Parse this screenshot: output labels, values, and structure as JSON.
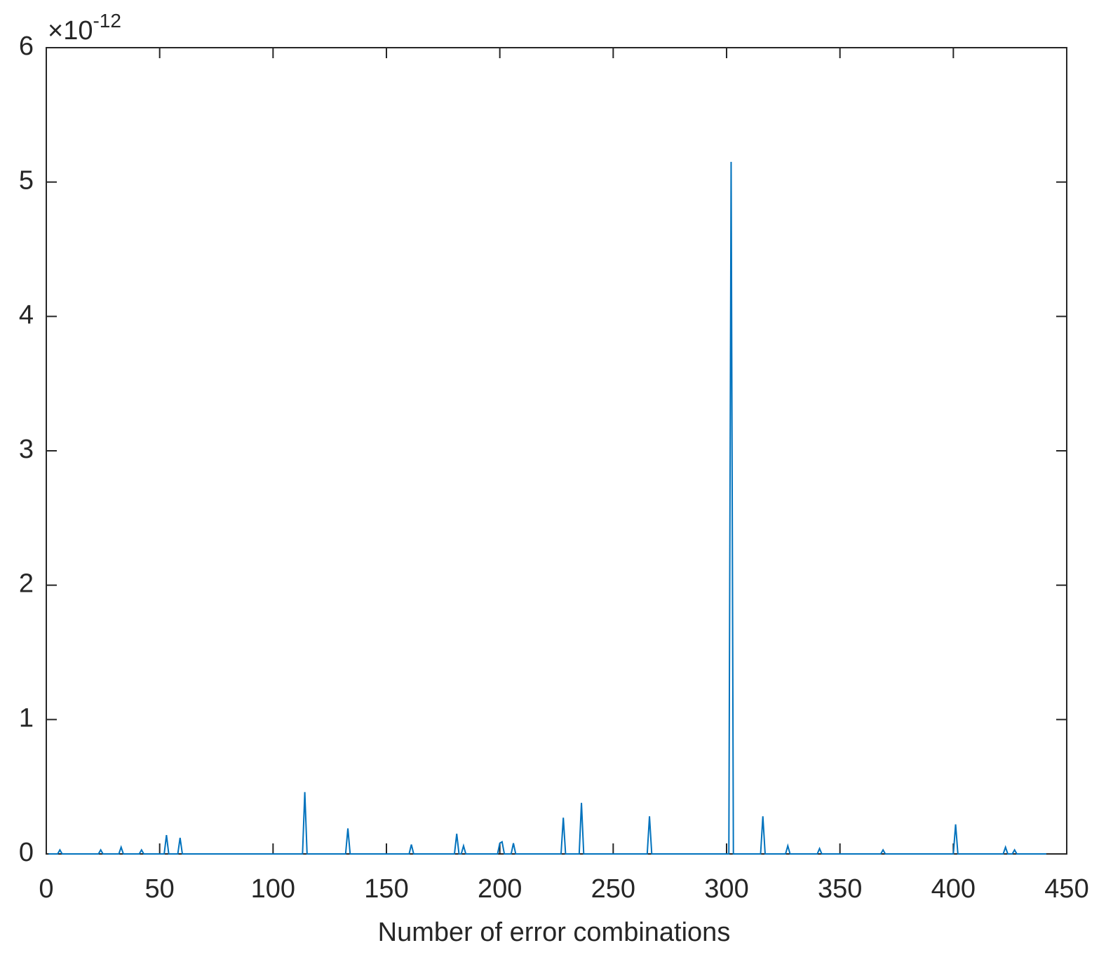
{
  "chart_data": {
    "type": "line",
    "xlabel": "Number of error combinations",
    "y_multiplier": {
      "base": "×10",
      "exponent": "-12"
    },
    "x": [
      1,
      5,
      6,
      7,
      23,
      24,
      25,
      32,
      33,
      34,
      41,
      42,
      43,
      52,
      53,
      54,
      58,
      59,
      60,
      113,
      114,
      115,
      132,
      133,
      134,
      160,
      161,
      162,
      180,
      181,
      182,
      183,
      184,
      185,
      199,
      200,
      201,
      202,
      205,
      206,
      207,
      227,
      228,
      229,
      235,
      236,
      237,
      265,
      266,
      267,
      301,
      302,
      303,
      315,
      316,
      317,
      326,
      327,
      328,
      340,
      341,
      342,
      368,
      369,
      370,
      400,
      401,
      402,
      422,
      423,
      424,
      426,
      427,
      428,
      441
    ],
    "series": [
      {
        "color": "#0072bd",
        "values": [
          0,
          0,
          0.03,
          0,
          0,
          0.03,
          0,
          0,
          0.05,
          0,
          0,
          0.03,
          0,
          0,
          0.14,
          0,
          0,
          0.12,
          0,
          0,
          0.46,
          0,
          0,
          0.19,
          0,
          0,
          0.07,
          0,
          0,
          0.15,
          0,
          0,
          0.06,
          0,
          0,
          0.08,
          0.09,
          0,
          0,
          0.08,
          0,
          0,
          0.27,
          0,
          0,
          0.38,
          0,
          0,
          0.28,
          0,
          0,
          5.15,
          0,
          0,
          0.28,
          0,
          0,
          0.06,
          0,
          0,
          0.04,
          0,
          0,
          0.03,
          0,
          0,
          0.22,
          0,
          0,
          0.05,
          0,
          0,
          0.03,
          0,
          0
        ]
      }
    ],
    "xlim": [
      0,
      450
    ],
    "xticks": [
      0,
      50,
      100,
      150,
      200,
      250,
      300,
      350,
      400,
      450
    ],
    "ylim": [
      0,
      6
    ],
    "yticks": [
      0,
      1,
      2,
      3,
      4,
      5,
      6
    ]
  }
}
